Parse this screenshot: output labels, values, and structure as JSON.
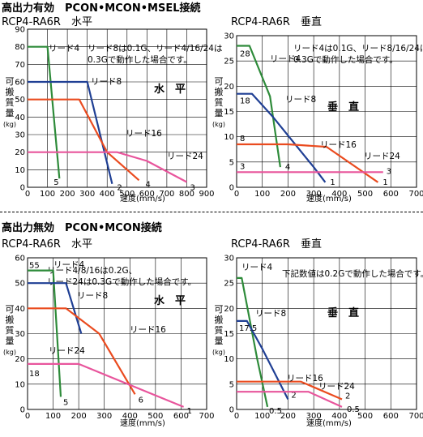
{
  "sections": [
    {
      "title": "高出力有効　PCON•MCON•MSEL接続"
    },
    {
      "title": "高出力無効　PCON•MCON接続"
    }
  ],
  "colors": {
    "green": "#2e8b3a",
    "blue": "#1f3f94",
    "orange": "#ea4b1f",
    "pink": "#e8559c"
  },
  "chart_data": [
    {
      "type": "line",
      "title": "RCP4-RA6R　水平",
      "xlabel": "速度(mm/s)",
      "ylabel": "可搬質量(kg)",
      "xlim": [
        0,
        900
      ],
      "ylim": [
        0,
        90
      ],
      "xticks": [
        0,
        100,
        200,
        300,
        400,
        500,
        600,
        700,
        800,
        900
      ],
      "yticks": [
        0,
        10,
        20,
        30,
        40,
        50,
        60,
        70,
        80,
        90
      ],
      "grid": true,
      "orientation_label": "水　平",
      "note": [
        "リード8は0.1G、リード4/16/24は",
        "0.3Gで動作した場合です。"
      ],
      "series": [
        {
          "name": "リード4",
          "color": "green",
          "end_label": "5",
          "points": [
            [
              0,
              80
            ],
            [
              100,
              80
            ],
            [
              160,
              5
            ]
          ]
        },
        {
          "name": "リード8",
          "color": "blue",
          "end_label": "2",
          "points": [
            [
              0,
              60
            ],
            [
              300,
              60
            ],
            [
              425,
              2
            ]
          ]
        },
        {
          "name": "リード16",
          "color": "orange",
          "end_label": "4",
          "points": [
            [
              0,
              50
            ],
            [
              260,
              50
            ],
            [
              400,
              20
            ],
            [
              560,
              4
            ]
          ]
        },
        {
          "name": "リード24",
          "color": "pink",
          "end_label": "3",
          "points": [
            [
              0,
              20
            ],
            [
              450,
              20
            ],
            [
              600,
              15
            ],
            [
              800,
              3
            ]
          ]
        }
      ]
    },
    {
      "type": "line",
      "title": "RCP4-RA6R　垂直",
      "xlabel": "速度(mm/s)",
      "ylabel": "可搬質量(kg)",
      "xlim": [
        0,
        700
      ],
      "ylim": [
        0,
        30
      ],
      "xticks": [
        0,
        100,
        200,
        300,
        400,
        500,
        600,
        700
      ],
      "yticks": [
        0,
        5,
        10,
        15,
        20,
        25,
        30
      ],
      "grid": true,
      "orientation_label": "垂　直",
      "note": [
        "リード4は0.1G、リード8/16/24は",
        "0.3Gで動作した場合です。"
      ],
      "series": [
        {
          "name": "リード4",
          "color": "green",
          "start_label": "28",
          "end_label": "4",
          "points": [
            [
              0,
              28
            ],
            [
              50,
              28
            ],
            [
              130,
              18
            ],
            [
              170,
              4
            ]
          ]
        },
        {
          "name": "リード8",
          "color": "blue",
          "start_label": "18",
          "end_label": "1",
          "points": [
            [
              0,
              18.5
            ],
            [
              60,
              18.5
            ],
            [
              140,
              14
            ],
            [
              300,
              4
            ],
            [
              345,
              1
            ]
          ]
        },
        {
          "name": "リード16",
          "color": "orange",
          "start_label": "8",
          "end_label": "1",
          "points": [
            [
              0,
              8.5
            ],
            [
              200,
              8.5
            ],
            [
              350,
              8
            ],
            [
              550,
              1
            ]
          ]
        },
        {
          "name": "リード24",
          "color": "pink",
          "start_label": "3",
          "end_label": "3",
          "points": [
            [
              0,
              3
            ],
            [
              570,
              3
            ]
          ]
        }
      ]
    },
    {
      "type": "line",
      "title": "RCP4-RA6R　水平",
      "xlabel": "速度(mm/s)",
      "ylabel": "可搬質量(kg)",
      "xlim": [
        0,
        700
      ],
      "ylim": [
        0,
        60
      ],
      "xticks": [
        0,
        100,
        200,
        300,
        400,
        500,
        600,
        700
      ],
      "yticks": [
        0,
        10,
        20,
        30,
        40,
        50,
        60
      ],
      "grid": true,
      "orientation_label": "水　平",
      "note": [
        "リード4/8/16は0.2G、",
        "リード24は0.3Gで動作した場合です。"
      ],
      "series": [
        {
          "name": "リード4",
          "color": "green",
          "start_label": "55",
          "end_label": "5",
          "points": [
            [
              0,
              55
            ],
            [
              100,
              55
            ],
            [
              130,
              5
            ]
          ]
        },
        {
          "name": "リード8",
          "color": "blue",
          "end_label": "",
          "points": [
            [
              0,
              50
            ],
            [
              150,
              50
            ],
            [
              210,
              30
            ]
          ]
        },
        {
          "name": "リード16",
          "color": "orange",
          "end_label": "6",
          "points": [
            [
              0,
              40
            ],
            [
              150,
              40
            ],
            [
              280,
              30
            ],
            [
              420,
              6
            ]
          ]
        },
        {
          "name": "リード24",
          "color": "pink",
          "start_label": "18",
          "end_label": "1",
          "points": [
            [
              0,
              18
            ],
            [
              200,
              18
            ],
            [
              610,
              1
            ]
          ]
        }
      ]
    },
    {
      "type": "line",
      "title": "RCP4-RA6R　垂直",
      "xlabel": "速度(mm/s)",
      "ylabel": "可搬質量(kg)",
      "xlim": [
        0,
        700
      ],
      "ylim": [
        0,
        30
      ],
      "xticks": [
        0,
        100,
        200,
        300,
        400,
        500,
        600,
        700
      ],
      "yticks": [
        0,
        5,
        10,
        15,
        20,
        25,
        30
      ],
      "grid": true,
      "orientation_label": "垂　直",
      "note": [
        "下記数値は0.2Gで動作した場合です。"
      ],
      "series": [
        {
          "name": "リード4",
          "color": "green",
          "end_label": "0.5",
          "points": [
            [
              0,
              26
            ],
            [
              20,
              26
            ],
            [
              80,
              10
            ],
            [
              120,
              0.5
            ]
          ]
        },
        {
          "name": "リード8",
          "color": "blue",
          "start_label": "17.5",
          "end_label": "2",
          "points": [
            [
              0,
              17.5
            ],
            [
              40,
              17.5
            ],
            [
              100,
              12
            ],
            [
              150,
              7
            ],
            [
              200,
              2
            ]
          ]
        },
        {
          "name": "リード16",
          "color": "orange",
          "end_label": "2",
          "points": [
            [
              0,
              5.5
            ],
            [
              250,
              5.5
            ],
            [
              410,
              2
            ]
          ]
        },
        {
          "name": "リード24",
          "color": "pink",
          "end_label": "0.5",
          "points": [
            [
              0,
              3.5
            ],
            [
              280,
              3.5
            ],
            [
              410,
              0.5
            ]
          ]
        }
      ]
    }
  ]
}
